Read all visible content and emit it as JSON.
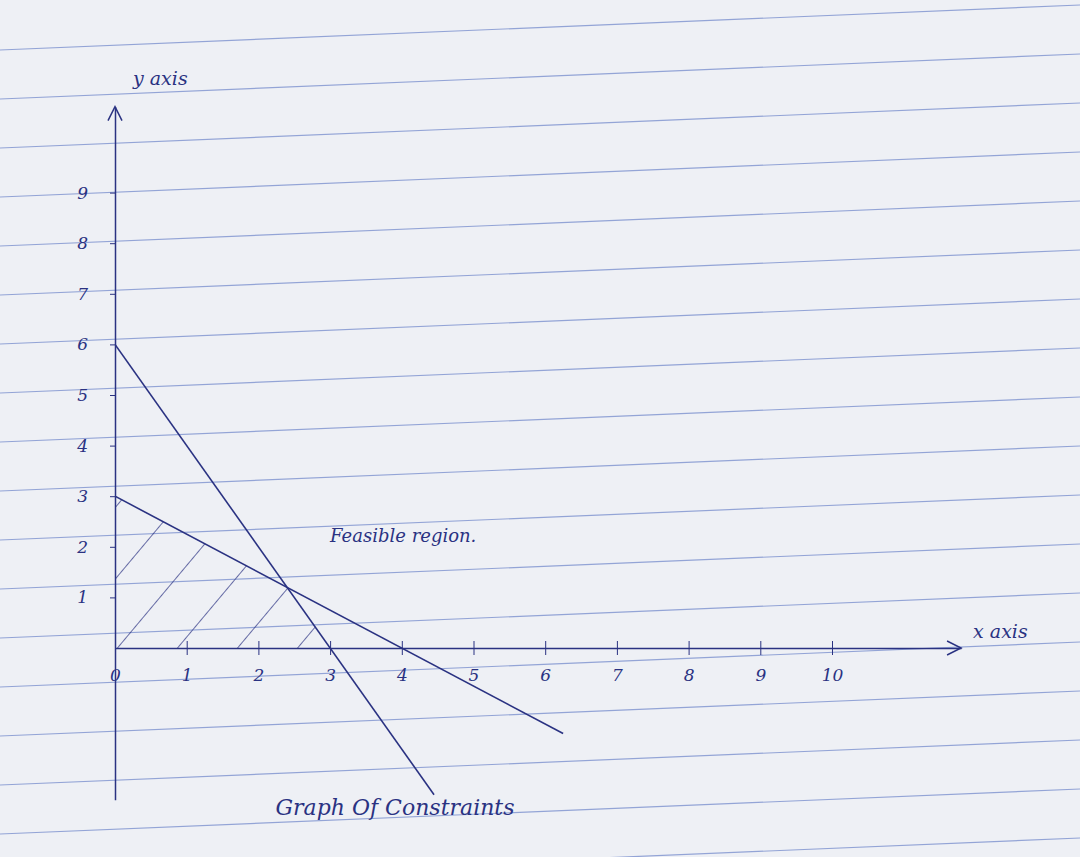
{
  "chart_data": {
    "type": "line",
    "title": "Graph Of Constraints",
    "x_label": "x axis",
    "y_label": "y axis",
    "color": "#2a3282",
    "series": [
      {
        "x": [
          0,
          4.45
        ],
        "values": [
          6,
          -2.9
        ]
      },
      {
        "x": [
          0,
          6.25
        ],
        "values": [
          3,
          -1.69
        ]
      }
    ],
    "feasible_region": {
      "x": [
        0,
        0,
        2.4,
        3
      ],
      "y": [
        0,
        3,
        1.2,
        0
      ]
    },
    "annotations": [
      {
        "text": "Feasible region.",
        "x": 3.0,
        "y": 2.1
      }
    ],
    "xlim": [
      0,
      11.8
    ],
    "ylim": [
      -3,
      10.7
    ],
    "xticks": [
      0,
      1,
      2,
      3,
      4,
      5,
      6,
      7,
      8,
      9,
      10
    ],
    "yticks": [
      1,
      2,
      3,
      4,
      5,
      6,
      7,
      8,
      9
    ],
    "grid": false
  }
}
